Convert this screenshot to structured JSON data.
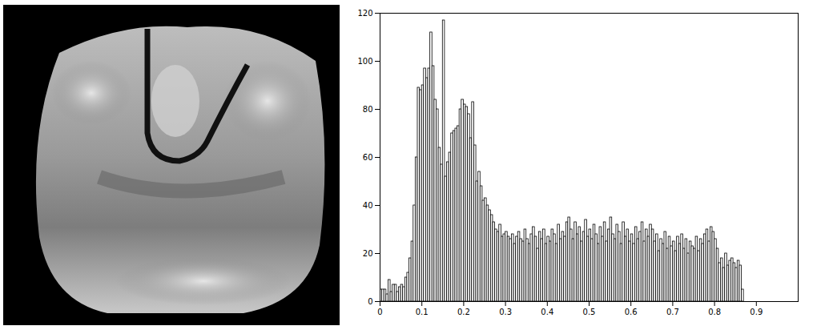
{
  "chart_data": {
    "type": "histogram",
    "bins": [
      0,
      0.005,
      0.01,
      0.015,
      0.02,
      0.025,
      0.03,
      0.035,
      0.04,
      0.045,
      0.05,
      0.055,
      0.06,
      0.065,
      0.07,
      0.075,
      0.08,
      0.085,
      0.09,
      0.095,
      0.1,
      0.105,
      0.11,
      0.115,
      0.12,
      0.125,
      0.13,
      0.135,
      0.14,
      0.145,
      0.15,
      0.155,
      0.16,
      0.165,
      0.17,
      0.175,
      0.18,
      0.185,
      0.19,
      0.195,
      0.2,
      0.205,
      0.21,
      0.215,
      0.22,
      0.225,
      0.23,
      0.235,
      0.24,
      0.245,
      0.25,
      0.255,
      0.26,
      0.265,
      0.27,
      0.275,
      0.28,
      0.285,
      0.29,
      0.295,
      0.3,
      0.305,
      0.31,
      0.315,
      0.32,
      0.325,
      0.33,
      0.335,
      0.34,
      0.345,
      0.35,
      0.355,
      0.36,
      0.365,
      0.37,
      0.375,
      0.38,
      0.385,
      0.39,
      0.395,
      0.4,
      0.405,
      0.41,
      0.415,
      0.42,
      0.425,
      0.43,
      0.435,
      0.44,
      0.445,
      0.45,
      0.455,
      0.46,
      0.465,
      0.47,
      0.475,
      0.48,
      0.485,
      0.49,
      0.495,
      0.5,
      0.505,
      0.51,
      0.515,
      0.52,
      0.525,
      0.53,
      0.535,
      0.54,
      0.545,
      0.55,
      0.555,
      0.56,
      0.565,
      0.57,
      0.575,
      0.58,
      0.585,
      0.59,
      0.595,
      0.6,
      0.605,
      0.61,
      0.615,
      0.62,
      0.625,
      0.63,
      0.635,
      0.64,
      0.645,
      0.65,
      0.655,
      0.66,
      0.665,
      0.67,
      0.675,
      0.68,
      0.685,
      0.69,
      0.695,
      0.7,
      0.705,
      0.71,
      0.715,
      0.72,
      0.725,
      0.73,
      0.735,
      0.74,
      0.745,
      0.75,
      0.755,
      0.76,
      0.765,
      0.77,
      0.775,
      0.78,
      0.785,
      0.79,
      0.795,
      0.8,
      0.805,
      0.81,
      0.815,
      0.82,
      0.825,
      0.83,
      0.835,
      0.84,
      0.845,
      0.85,
      0.855,
      0.86,
      0.865,
      0.87
    ],
    "values": [
      5,
      5,
      5,
      3,
      9,
      4,
      7,
      7,
      4,
      6,
      7,
      6,
      10,
      12,
      18,
      25,
      40,
      60,
      89,
      88,
      90,
      97,
      93,
      97,
      112,
      98,
      84,
      80,
      64,
      57,
      117,
      52,
      58,
      62,
      70,
      71,
      72,
      73,
      80,
      84,
      82,
      81,
      78,
      68,
      83,
      65,
      50,
      54,
      48,
      42,
      43,
      40,
      38,
      36,
      33,
      30,
      29,
      32,
      27,
      28,
      29,
      27,
      26,
      28,
      24,
      27,
      29,
      26,
      25,
      30,
      26,
      24,
      28,
      31,
      27,
      22,
      29,
      26,
      30,
      24,
      27,
      25,
      30,
      28,
      24,
      32,
      26,
      29,
      27,
      33,
      35,
      30,
      26,
      33,
      28,
      31,
      25,
      29,
      34,
      27,
      30,
      26,
      32,
      28,
      24,
      31,
      27,
      33,
      25,
      30,
      35,
      28,
      26,
      32,
      29,
      24,
      33,
      27,
      30,
      25,
      28,
      24,
      31,
      26,
      29,
      33,
      25,
      30,
      27,
      32,
      30,
      25,
      28,
      21,
      26,
      24,
      29,
      22,
      27,
      23,
      25,
      21,
      27,
      24,
      28,
      22,
      26,
      20,
      25,
      23,
      22,
      27,
      21,
      26,
      24,
      28,
      30,
      25,
      31,
      29,
      26,
      22,
      16,
      18,
      14,
      20,
      15,
      17,
      18,
      16,
      14,
      17,
      15,
      5
    ],
    "color": "#ffffff",
    "xlim": [
      0,
      1
    ],
    "xticks": [
      0,
      0.1,
      0.2,
      0.3,
      0.4,
      0.5,
      0.6,
      0.7,
      0.8,
      0.9
    ],
    "ylim": [
      0,
      120
    ],
    "yticks": [
      0,
      20,
      40,
      60,
      80,
      100,
      120
    ],
    "grid": false
  }
}
